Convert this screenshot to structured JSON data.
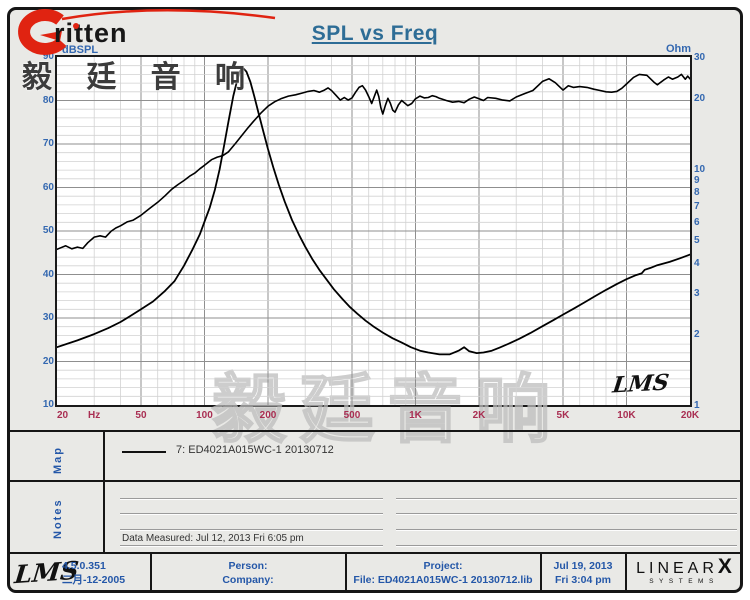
{
  "brand": {
    "logo_text": "ritten",
    "cn_text": "毅 廷 音 响"
  },
  "header": {
    "title": "SPL vs Freq"
  },
  "chart": {
    "y_left_label": "dBSPL",
    "y_right_label": "Ohm",
    "x_unit": "Hz",
    "y_left_ticks": [
      90,
      80,
      70,
      60,
      50,
      40,
      30,
      20,
      10
    ],
    "y_right_ticks": [
      30,
      20,
      10,
      9,
      8,
      7,
      6,
      5,
      4,
      3,
      2,
      1
    ],
    "x_ticks": [
      {
        "f": 20,
        "label": "20"
      },
      {
        "f": 50,
        "label": "50"
      },
      {
        "f": 100,
        "label": "100"
      },
      {
        "f": 200,
        "label": "200"
      },
      {
        "f": 500,
        "label": "500"
      },
      {
        "f": 1000,
        "label": "1K"
      },
      {
        "f": 2000,
        "label": "2K"
      },
      {
        "f": 5000,
        "label": "5K"
      },
      {
        "f": 10000,
        "label": "10K"
      },
      {
        "f": 20000,
        "label": "20K"
      }
    ],
    "watermark": "毅廷音响",
    "lms_logo": "LMS",
    "colors": {
      "title_blue": "#2e6d96",
      "tick_blue": "#3468b0",
      "freq_red": "#a92e52",
      "curve": "#000000",
      "grid_minor": "#d2d2d2",
      "grid_major": "#8f8f8f",
      "brand_red": "#e02311"
    }
  },
  "chart_data": {
    "type": "line",
    "title": "SPL vs Freq",
    "x_axis": {
      "label": "Hz",
      "scale": "log",
      "min": 20,
      "max": 20000,
      "tick_labels": [
        "20 Hz",
        "50",
        "100",
        "200",
        "500",
        "1K",
        "2K",
        "5K",
        "10K",
        "20K"
      ]
    },
    "y_left_axis": {
      "label": "dBSPL",
      "scale": "linear",
      "min": 10,
      "max": 90
    },
    "y_right_axis": {
      "label": "Ohm",
      "scale": "log",
      "min": 1,
      "max": 30
    },
    "legend_position": "map-strip-below-chart",
    "grid": true,
    "series": [
      {
        "name": "7: ED4021A015WC-1  20130712 (SPL)",
        "axis": "left",
        "units": "dBSPL",
        "points": [
          [
            20,
            45.8
          ],
          [
            22,
            46.6
          ],
          [
            23.5,
            45.9
          ],
          [
            25,
            46.3
          ],
          [
            26.5,
            46.0
          ],
          [
            28,
            47.3
          ],
          [
            30,
            48.6
          ],
          [
            32,
            48.9
          ],
          [
            34,
            48.6
          ],
          [
            36,
            49.9
          ],
          [
            38,
            50.7
          ],
          [
            40,
            51.2
          ],
          [
            43,
            52.1
          ],
          [
            46,
            52.5
          ],
          [
            50,
            53.6
          ],
          [
            55,
            55.2
          ],
          [
            60,
            56.6
          ],
          [
            65,
            58.1
          ],
          [
            70,
            59.6
          ],
          [
            75,
            60.7
          ],
          [
            80,
            61.6
          ],
          [
            85,
            62.6
          ],
          [
            90,
            63.3
          ],
          [
            95,
            64.3
          ],
          [
            100,
            65.1
          ],
          [
            108,
            66.4
          ],
          [
            115,
            67.0
          ],
          [
            122,
            67.3
          ],
          [
            130,
            68.2
          ],
          [
            140,
            70.1
          ],
          [
            150,
            71.9
          ],
          [
            160,
            73.6
          ],
          [
            170,
            75.1
          ],
          [
            185,
            77.1
          ],
          [
            200,
            78.7
          ],
          [
            215,
            79.7
          ],
          [
            230,
            80.4
          ],
          [
            250,
            81.0
          ],
          [
            270,
            81.3
          ],
          [
            290,
            81.7
          ],
          [
            310,
            82.1
          ],
          [
            330,
            82.3
          ],
          [
            350,
            81.9
          ],
          [
            370,
            82.4
          ],
          [
            385,
            82.9
          ],
          [
            400,
            82.3
          ],
          [
            420,
            81.2
          ],
          [
            440,
            80.1
          ],
          [
            460,
            80.7
          ],
          [
            480,
            80.1
          ],
          [
            500,
            80.6
          ],
          [
            520,
            81.9
          ],
          [
            540,
            83.0
          ],
          [
            560,
            83.4
          ],
          [
            580,
            82.4
          ],
          [
            600,
            80.9
          ],
          [
            620,
            79.3
          ],
          [
            640,
            81.1
          ],
          [
            655,
            82.4
          ],
          [
            670,
            80.9
          ],
          [
            685,
            78.4
          ],
          [
            700,
            76.9
          ],
          [
            720,
            78.9
          ],
          [
            740,
            80.5
          ],
          [
            760,
            79.4
          ],
          [
            780,
            77.8
          ],
          [
            800,
            77.3
          ],
          [
            830,
            79.0
          ],
          [
            860,
            80.0
          ],
          [
            890,
            79.4
          ],
          [
            920,
            78.8
          ],
          [
            960,
            79.3
          ],
          [
            1000,
            80.4
          ],
          [
            1050,
            81.0
          ],
          [
            1100,
            80.6
          ],
          [
            1150,
            80.7
          ],
          [
            1200,
            81.1
          ],
          [
            1250,
            80.9
          ],
          [
            1300,
            80.5
          ],
          [
            1400,
            80.0
          ],
          [
            1500,
            79.6
          ],
          [
            1600,
            79.8
          ],
          [
            1700,
            79.5
          ],
          [
            1800,
            80.3
          ],
          [
            1900,
            80.8
          ],
          [
            2000,
            80.4
          ],
          [
            2100,
            80.0
          ],
          [
            2200,
            80.7
          ],
          [
            2400,
            80.5
          ],
          [
            2600,
            80.1
          ],
          [
            2800,
            79.9
          ],
          [
            3000,
            80.8
          ],
          [
            3300,
            81.6
          ],
          [
            3600,
            82.3
          ],
          [
            4000,
            84.4
          ],
          [
            4300,
            85.0
          ],
          [
            4600,
            84.1
          ],
          [
            5000,
            82.4
          ],
          [
            5300,
            83.4
          ],
          [
            5600,
            83.0
          ],
          [
            6000,
            83.2
          ],
          [
            6500,
            83.0
          ],
          [
            7000,
            82.6
          ],
          [
            7500,
            82.3
          ],
          [
            8000,
            82.0
          ],
          [
            8500,
            81.9
          ],
          [
            9000,
            82.1
          ],
          [
            9500,
            82.8
          ],
          [
            10000,
            83.8
          ],
          [
            10800,
            85.3
          ],
          [
            11500,
            86.0
          ],
          [
            12500,
            85.8
          ],
          [
            13500,
            84.2
          ],
          [
            14000,
            83.6
          ],
          [
            15000,
            84.7
          ],
          [
            15800,
            85.4
          ],
          [
            16500,
            84.9
          ],
          [
            17500,
            85.4
          ],
          [
            18200,
            86.0
          ],
          [
            19000,
            84.9
          ],
          [
            19500,
            85.6
          ],
          [
            20000,
            85.0
          ]
        ]
      },
      {
        "name": "7: ED4021A015WC-1  20130712 (Impedance)",
        "axis": "right",
        "units": "Ohm",
        "points": [
          [
            20,
            1.76
          ],
          [
            25,
            1.88
          ],
          [
            30,
            2.0
          ],
          [
            35,
            2.12
          ],
          [
            40,
            2.25
          ],
          [
            45,
            2.4
          ],
          [
            50,
            2.55
          ],
          [
            57,
            2.75
          ],
          [
            65,
            3.05
          ],
          [
            72,
            3.35
          ],
          [
            80,
            3.9
          ],
          [
            88,
            4.6
          ],
          [
            95,
            5.3
          ],
          [
            100,
            6.0
          ],
          [
            106,
            6.9
          ],
          [
            112,
            8.2
          ],
          [
            118,
            10.0
          ],
          [
            124,
            12.7
          ],
          [
            130,
            16.0
          ],
          [
            137,
            20.5
          ],
          [
            143,
            24.0
          ],
          [
            148,
            26.3
          ],
          [
            153,
            26.8
          ],
          [
            158,
            26.0
          ],
          [
            165,
            23.5
          ],
          [
            172,
            20.5
          ],
          [
            180,
            17.5
          ],
          [
            190,
            14.5
          ],
          [
            200,
            12.2
          ],
          [
            212,
            10.2
          ],
          [
            225,
            8.6
          ],
          [
            240,
            7.3
          ],
          [
            260,
            6.1
          ],
          [
            280,
            5.3
          ],
          [
            300,
            4.7
          ],
          [
            325,
            4.15
          ],
          [
            350,
            3.75
          ],
          [
            380,
            3.4
          ],
          [
            410,
            3.1
          ],
          [
            450,
            2.82
          ],
          [
            490,
            2.6
          ],
          [
            530,
            2.44
          ],
          [
            580,
            2.28
          ],
          [
            630,
            2.16
          ],
          [
            700,
            2.03
          ],
          [
            780,
            1.92
          ],
          [
            860,
            1.84
          ],
          [
            950,
            1.76
          ],
          [
            1050,
            1.7
          ],
          [
            1150,
            1.67
          ],
          [
            1300,
            1.64
          ],
          [
            1450,
            1.64
          ],
          [
            1600,
            1.7
          ],
          [
            1700,
            1.76
          ],
          [
            1800,
            1.69
          ],
          [
            1950,
            1.66
          ],
          [
            2100,
            1.67
          ],
          [
            2300,
            1.7
          ],
          [
            2500,
            1.75
          ],
          [
            2800,
            1.83
          ],
          [
            3100,
            1.91
          ],
          [
            3500,
            2.02
          ],
          [
            4000,
            2.16
          ],
          [
            4500,
            2.29
          ],
          [
            5000,
            2.42
          ],
          [
            5600,
            2.56
          ],
          [
            6300,
            2.72
          ],
          [
            7100,
            2.9
          ],
          [
            8000,
            3.08
          ],
          [
            9000,
            3.26
          ],
          [
            10000,
            3.42
          ],
          [
            11000,
            3.55
          ],
          [
            11800,
            3.62
          ],
          [
            12200,
            3.75
          ],
          [
            13000,
            3.82
          ],
          [
            14000,
            3.92
          ],
          [
            16000,
            4.05
          ],
          [
            18000,
            4.2
          ],
          [
            20000,
            4.35
          ]
        ]
      }
    ]
  },
  "map_section": {
    "label": "Map",
    "legend": "7: ED4021A015WC-1   20130712"
  },
  "notes_section": {
    "label": "Notes",
    "data_measured": "Data Measured: Jul 12, 2013  Fri  6:05 pm"
  },
  "footer": {
    "lms_logo": "LMS",
    "version": "4.5.0.351",
    "version_date": "二月-12-2005",
    "person_label": "Person:",
    "company_label": "Company:",
    "project_label": "Project:",
    "file_label": "File: ED4021A015WC-1  20130712.lib",
    "date": "Jul 19, 2013",
    "time": "Fri  3:04 pm",
    "linearx": {
      "linear": "LINEAR",
      "x": "X",
      "systems": "SYSTEMS"
    }
  }
}
